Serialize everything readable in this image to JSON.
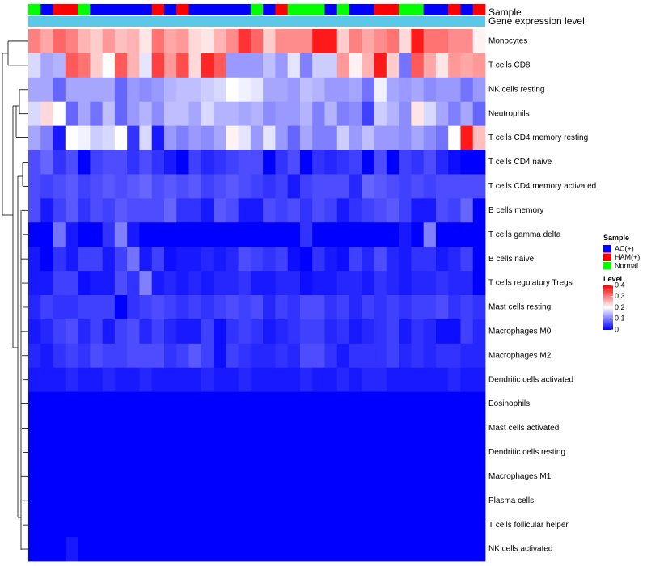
{
  "chart_data": {
    "type": "heatmap",
    "title": "",
    "annotation_labels": {
      "sample": "Sample",
      "gene_expression": "Gene expression level"
    },
    "sample_colors": {
      "AC": "#0000ff",
      "HAM": "#ff0000",
      "Normal": "#00ff00"
    },
    "gene_bar_color": "#5ac8e8",
    "level_colors": {
      "low": "#0000ff",
      "mid": "#ffffff",
      "high": "#ff0000"
    },
    "color_range": [
      0,
      0.4
    ],
    "sample_groups": [
      "N",
      "A",
      "H",
      "H",
      "N",
      "A",
      "A",
      "A",
      "A",
      "A",
      "H",
      "A",
      "H",
      "A",
      "A",
      "A",
      "A",
      "A",
      "N",
      "A",
      "H",
      "N",
      "N",
      "N",
      "A",
      "N",
      "A",
      "A",
      "H",
      "H",
      "N",
      "N",
      "A",
      "A",
      "H",
      "A",
      "H"
    ],
    "rows": [
      "Monocytes",
      "T cells CD8",
      "NK cells resting",
      "Neutrophils",
      "T cells CD4 memory resting",
      "T cells CD4 naive",
      "T cells CD4 memory activated",
      "B cells memory",
      "T cells gamma delta",
      "B cells naive",
      "T cells regulatory  Tregs",
      "Mast cells resting",
      "Macrophages M0",
      "Macrophages M2",
      "Dendritic cells activated",
      "Eosinophils",
      "Mast cells activated",
      "Dendritic cells resting",
      "Macrophages M1",
      "Plasma cells",
      "T cells follicular helper",
      "NK cells activated"
    ],
    "values": [
      [
        0.3,
        0.27,
        0.32,
        0.3,
        0.26,
        0.24,
        0.28,
        0.25,
        0.26,
        0.22,
        0.31,
        0.27,
        0.28,
        0.23,
        0.22,
        0.26,
        0.29,
        0.36,
        0.32,
        0.24,
        0.29,
        0.29,
        0.29,
        0.38,
        0.38,
        0.24,
        0.3,
        0.27,
        0.29,
        0.31,
        0.23,
        0.38,
        0.31,
        0.31,
        0.29,
        0.29,
        0.21
      ],
      [
        0.17,
        0.13,
        0.14,
        0.33,
        0.31,
        0.24,
        0.2,
        0.33,
        0.26,
        0.18,
        0.35,
        0.28,
        0.34,
        0.23,
        0.37,
        0.33,
        0.12,
        0.12,
        0.12,
        0.15,
        0.12,
        0.18,
        0.1,
        0.16,
        0.16,
        0.28,
        0.21,
        0.26,
        0.38,
        0.24,
        0.09,
        0.33,
        0.27,
        0.22,
        0.28,
        0.27,
        0.28
      ],
      [
        0.13,
        0.13,
        0.08,
        0.13,
        0.13,
        0.13,
        0.13,
        0.08,
        0.12,
        0.11,
        0.12,
        0.14,
        0.15,
        0.15,
        0.16,
        0.17,
        0.2,
        0.19,
        0.18,
        0.13,
        0.13,
        0.12,
        0.15,
        0.14,
        0.12,
        0.12,
        0.13,
        0.09,
        0.19,
        0.13,
        0.12,
        0.13,
        0.11,
        0.12,
        0.12,
        0.09,
        0.12
      ],
      [
        0.17,
        0.23,
        0.2,
        0.08,
        0.13,
        0.09,
        0.15,
        0.08,
        0.12,
        0.14,
        0.11,
        0.15,
        0.15,
        0.13,
        0.17,
        0.14,
        0.14,
        0.13,
        0.14,
        0.11,
        0.12,
        0.12,
        0.14,
        0.1,
        0.14,
        0.1,
        0.11,
        0.05,
        0.16,
        0.14,
        0.11,
        0.22,
        0.17,
        0.13,
        0.1,
        0.13,
        0.08
      ],
      [
        0.13,
        0.1,
        0.02,
        0.2,
        0.19,
        0.16,
        0.17,
        0.2,
        0.04,
        0.17,
        0.02,
        0.12,
        0.1,
        0.12,
        0.11,
        0.13,
        0.21,
        0.18,
        0.12,
        0.18,
        0.12,
        0.08,
        0.13,
        0.1,
        0.1,
        0.16,
        0.12,
        0.15,
        0.12,
        0.12,
        0.11,
        0.13,
        0.11,
        0.09,
        0.2,
        0.38,
        0.25
      ],
      [
        0.06,
        0.08,
        0.04,
        0.06,
        0.0,
        0.05,
        0.06,
        0.06,
        0.04,
        0.06,
        0.04,
        0.02,
        0.0,
        0.05,
        0.03,
        0.04,
        0.05,
        0.06,
        0.06,
        0.0,
        0.04,
        0.06,
        0.0,
        0.04,
        0.03,
        0.04,
        0.05,
        0.0,
        0.06,
        0.0,
        0.05,
        0.04,
        0.06,
        0.03,
        0.01,
        0.0,
        0.0
      ],
      [
        0.06,
        0.05,
        0.06,
        0.07,
        0.05,
        0.06,
        0.07,
        0.06,
        0.07,
        0.08,
        0.06,
        0.07,
        0.06,
        0.07,
        0.05,
        0.06,
        0.07,
        0.06,
        0.05,
        0.04,
        0.05,
        0.02,
        0.05,
        0.06,
        0.06,
        0.06,
        0.03,
        0.08,
        0.07,
        0.06,
        0.05,
        0.06,
        0.05,
        0.06,
        0.06,
        0.06,
        0.06
      ],
      [
        0.06,
        0.02,
        0.05,
        0.07,
        0.04,
        0.06,
        0.05,
        0.07,
        0.06,
        0.06,
        0.06,
        0.08,
        0.04,
        0.04,
        0.02,
        0.07,
        0.06,
        0.02,
        0.02,
        0.06,
        0.05,
        0.06,
        0.04,
        0.06,
        0.05,
        0.02,
        0.04,
        0.05,
        0.06,
        0.07,
        0.05,
        0.02,
        0.02,
        0.06,
        0.05,
        0.08,
        0.0
      ],
      [
        0.0,
        0.0,
        0.09,
        0.02,
        0.0,
        0.0,
        0.04,
        0.1,
        0.02,
        0.0,
        0.0,
        0.0,
        0.0,
        0.0,
        0.0,
        0.0,
        0.0,
        0.0,
        0.0,
        0.0,
        0.0,
        0.0,
        0.04,
        0.0,
        0.0,
        0.0,
        0.0,
        0.0,
        0.0,
        0.0,
        0.02,
        0.0,
        0.1,
        0.0,
        0.0,
        0.0,
        0.0
      ],
      [
        0.02,
        0.0,
        0.04,
        0.02,
        0.05,
        0.05,
        0.02,
        0.05,
        0.09,
        0.02,
        0.05,
        0.01,
        0.02,
        0.02,
        0.03,
        0.02,
        0.03,
        0.06,
        0.05,
        0.04,
        0.05,
        0.01,
        0.0,
        0.04,
        0.02,
        0.01,
        0.05,
        0.03,
        0.06,
        0.03,
        0.02,
        0.04,
        0.04,
        0.02,
        0.03,
        0.05,
        0.0
      ],
      [
        0.02,
        0.02,
        0.05,
        0.05,
        0.01,
        0.02,
        0.02,
        0.06,
        0.04,
        0.1,
        0.02,
        0.03,
        0.02,
        0.03,
        0.02,
        0.03,
        0.03,
        0.04,
        0.02,
        0.02,
        0.03,
        0.03,
        0.01,
        0.02,
        0.02,
        0.03,
        0.03,
        0.02,
        0.04,
        0.03,
        0.02,
        0.03,
        0.03,
        0.04,
        0.03,
        0.03,
        0.0
      ],
      [
        0.03,
        0.05,
        0.04,
        0.04,
        0.05,
        0.05,
        0.05,
        0.0,
        0.04,
        0.05,
        0.06,
        0.05,
        0.04,
        0.05,
        0.04,
        0.05,
        0.06,
        0.05,
        0.06,
        0.03,
        0.05,
        0.04,
        0.06,
        0.06,
        0.04,
        0.05,
        0.03,
        0.05,
        0.04,
        0.05,
        0.04,
        0.05,
        0.05,
        0.06,
        0.04,
        0.05,
        0.04
      ],
      [
        0.02,
        0.03,
        0.05,
        0.06,
        0.03,
        0.05,
        0.02,
        0.05,
        0.06,
        0.03,
        0.05,
        0.03,
        0.02,
        0.02,
        0.05,
        0.01,
        0.04,
        0.05,
        0.04,
        0.02,
        0.03,
        0.04,
        0.05,
        0.05,
        0.03,
        0.04,
        0.02,
        0.03,
        0.04,
        0.05,
        0.02,
        0.04,
        0.03,
        0.01,
        0.01,
        0.05,
        0.03
      ],
      [
        0.03,
        0.02,
        0.04,
        0.05,
        0.04,
        0.06,
        0.05,
        0.05,
        0.06,
        0.06,
        0.06,
        0.04,
        0.05,
        0.07,
        0.05,
        0.01,
        0.05,
        0.04,
        0.03,
        0.03,
        0.04,
        0.03,
        0.06,
        0.06,
        0.04,
        0.02,
        0.04,
        0.04,
        0.04,
        0.05,
        0.03,
        0.04,
        0.03,
        0.04,
        0.04,
        0.03,
        0.03
      ],
      [
        0.02,
        0.02,
        0.02,
        0.03,
        0.02,
        0.02,
        0.03,
        0.02,
        0.02,
        0.03,
        0.02,
        0.02,
        0.02,
        0.02,
        0.03,
        0.02,
        0.02,
        0.03,
        0.02,
        0.02,
        0.02,
        0.02,
        0.03,
        0.02,
        0.02,
        0.03,
        0.02,
        0.03,
        0.03,
        0.02,
        0.02,
        0.02,
        0.02,
        0.02,
        0.03,
        0.02,
        0.02
      ],
      [
        0.0,
        0.0,
        0.0,
        0.0,
        0.0,
        0.0,
        0.0,
        0.0,
        0.0,
        0.0,
        0.0,
        0.0,
        0.0,
        0.0,
        0.0,
        0.0,
        0.0,
        0.0,
        0.0,
        0.0,
        0.0,
        0.0,
        0.0,
        0.0,
        0.0,
        0.0,
        0.0,
        0.0,
        0.0,
        0.0,
        0.0,
        0.0,
        0.0,
        0.0,
        0.0,
        0.0,
        0.0
      ],
      [
        0.0,
        0.0,
        0.0,
        0.0,
        0.0,
        0.0,
        0.0,
        0.0,
        0.0,
        0.0,
        0.0,
        0.0,
        0.0,
        0.0,
        0.0,
        0.0,
        0.0,
        0.0,
        0.0,
        0.0,
        0.0,
        0.0,
        0.0,
        0.0,
        0.0,
        0.0,
        0.0,
        0.0,
        0.0,
        0.0,
        0.0,
        0.0,
        0.0,
        0.0,
        0.0,
        0.0,
        0.0
      ],
      [
        0.0,
        0.0,
        0.0,
        0.0,
        0.0,
        0.0,
        0.0,
        0.0,
        0.0,
        0.0,
        0.0,
        0.0,
        0.0,
        0.0,
        0.0,
        0.0,
        0.0,
        0.0,
        0.0,
        0.0,
        0.0,
        0.0,
        0.0,
        0.0,
        0.0,
        0.0,
        0.0,
        0.0,
        0.0,
        0.0,
        0.0,
        0.0,
        0.0,
        0.0,
        0.0,
        0.0,
        0.0
      ],
      [
        0.0,
        0.0,
        0.0,
        0.0,
        0.0,
        0.0,
        0.0,
        0.0,
        0.0,
        0.0,
        0.0,
        0.0,
        0.0,
        0.0,
        0.0,
        0.0,
        0.0,
        0.0,
        0.0,
        0.0,
        0.0,
        0.0,
        0.0,
        0.0,
        0.0,
        0.0,
        0.0,
        0.0,
        0.0,
        0.0,
        0.0,
        0.0,
        0.0,
        0.0,
        0.0,
        0.0,
        0.0
      ],
      [
        0.0,
        0.0,
        0.0,
        0.0,
        0.0,
        0.0,
        0.0,
        0.0,
        0.0,
        0.0,
        0.0,
        0.0,
        0.0,
        0.0,
        0.0,
        0.0,
        0.0,
        0.0,
        0.0,
        0.0,
        0.0,
        0.0,
        0.0,
        0.0,
        0.0,
        0.0,
        0.0,
        0.0,
        0.0,
        0.0,
        0.0,
        0.0,
        0.0,
        0.0,
        0.0,
        0.0,
        0.0
      ],
      [
        0.0,
        0.0,
        0.0,
        0.0,
        0.0,
        0.0,
        0.0,
        0.0,
        0.0,
        0.0,
        0.0,
        0.0,
        0.0,
        0.0,
        0.0,
        0.0,
        0.0,
        0.0,
        0.0,
        0.0,
        0.0,
        0.0,
        0.0,
        0.0,
        0.0,
        0.0,
        0.0,
        0.0,
        0.0,
        0.0,
        0.0,
        0.0,
        0.0,
        0.0,
        0.0,
        0.0,
        0.0
      ],
      [
        0.0,
        0.0,
        0.0,
        0.02,
        0.0,
        0.0,
        0.0,
        0.0,
        0.0,
        0.0,
        0.0,
        0.0,
        0.0,
        0.0,
        0.0,
        0.0,
        0.0,
        0.0,
        0.0,
        0.0,
        0.0,
        0.0,
        0.0,
        0.0,
        0.0,
        0.0,
        0.0,
        0.0,
        0.0,
        0.0,
        0.0,
        0.0,
        0.0,
        0.0,
        0.0,
        0.0,
        0.0
      ]
    ],
    "legend": {
      "sample_title": "Sample",
      "sample_entries": [
        {
          "key": "A",
          "label": "AC(+)"
        },
        {
          "key": "H",
          "label": "HAM(+)"
        },
        {
          "key": "N",
          "label": "Normal"
        }
      ],
      "level_title": "Level",
      "level_ticks": [
        "0.4",
        "0.3",
        "0.2",
        "0.1",
        "0"
      ],
      "level_tick_values": [
        0.4,
        0.3,
        0.2,
        0.1,
        0
      ]
    }
  }
}
